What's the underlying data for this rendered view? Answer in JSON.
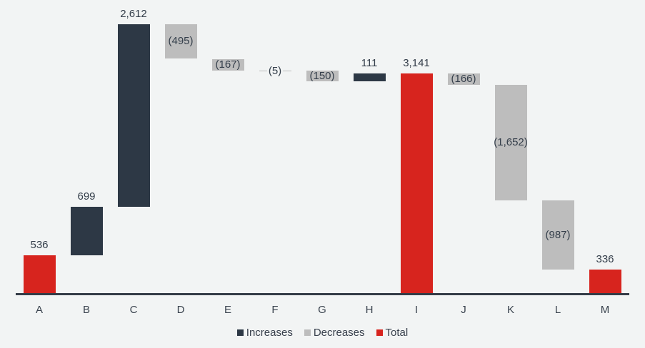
{
  "page": {
    "background_color": "#f2f4f4",
    "axis_color": "#343c47",
    "text_color": "#39414d"
  },
  "chart_data": {
    "type": "bar",
    "variant": "waterfall",
    "title": "",
    "xlabel": "",
    "ylabel": "",
    "grid": false,
    "y_axis_visible": false,
    "ylim": [
      0,
      3847
    ],
    "legend_position": "bottom-center",
    "categories": [
      "A",
      "B",
      "C",
      "D",
      "E",
      "F",
      "G",
      "H",
      "I",
      "J",
      "K",
      "L",
      "M"
    ],
    "points": [
      {
        "category": "A",
        "role": "total",
        "value": 536,
        "label": "536"
      },
      {
        "category": "B",
        "role": "increase",
        "value": 699,
        "label": "699"
      },
      {
        "category": "C",
        "role": "increase",
        "value": 2612,
        "label": "2,612"
      },
      {
        "category": "D",
        "role": "decrease",
        "value": 495,
        "label": "(495)"
      },
      {
        "category": "E",
        "role": "decrease",
        "value": 167,
        "label": "(167)"
      },
      {
        "category": "F",
        "role": "decrease",
        "value": 5,
        "label": "(5)"
      },
      {
        "category": "G",
        "role": "decrease",
        "value": 150,
        "label": "(150)"
      },
      {
        "category": "H",
        "role": "increase",
        "value": 111,
        "label": "111"
      },
      {
        "category": "I",
        "role": "total",
        "value": 3141,
        "label": "3,141"
      },
      {
        "category": "J",
        "role": "decrease",
        "value": 166,
        "label": "(166)"
      },
      {
        "category": "K",
        "role": "decrease",
        "value": 1652,
        "label": "(1,652)"
      },
      {
        "category": "L",
        "role": "decrease",
        "value": 987,
        "label": "(987)"
      },
      {
        "category": "M",
        "role": "total",
        "value": 336,
        "label": "336"
      }
    ],
    "colors": {
      "increase": "#2d3845",
      "decrease": "#bdbdbd",
      "total": "#d7241e"
    }
  },
  "legend": {
    "items": [
      {
        "id": "increases",
        "label": "Increases",
        "color": "#2d3845"
      },
      {
        "id": "decreases",
        "label": "Decreases",
        "color": "#bdbdbd"
      },
      {
        "id": "total",
        "label": "Total",
        "color": "#d7241e"
      }
    ]
  }
}
